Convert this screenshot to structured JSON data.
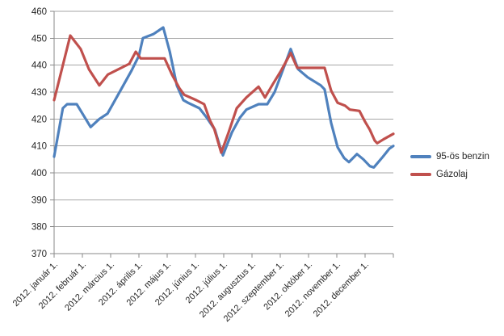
{
  "chart_data": {
    "type": "line",
    "title": "",
    "x_unit": "months_from_2012_01_01",
    "x_tick_labels": [
      "2012. január 1.",
      "2012. február 1.",
      "2012. március 1.",
      "2012. április 1.",
      "2012. május 1.",
      "2012. június 1.",
      "2012. július 1.",
      "2012. augusztus 1.",
      "2012. szeptember 1.",
      "2012. október 1.",
      "2012. november 1.",
      "2012. december 1."
    ],
    "y_axis": {
      "min": 370,
      "max": 460,
      "step": 10
    },
    "y_ticks": [
      370,
      380,
      390,
      400,
      410,
      420,
      430,
      440,
      450,
      460
    ],
    "grid": true,
    "legend_position": "right",
    "colors": {
      "gridline": "#A6A6A6",
      "axis": "#898989",
      "label_text": "#262626"
    },
    "series": [
      {
        "name": "95-ös benzin",
        "color": "#4F81BD",
        "points": [
          [
            0,
            406
          ],
          [
            0.31,
            424
          ],
          [
            0.46,
            425.5
          ],
          [
            0.8,
            425.5
          ],
          [
            1.03,
            421.5
          ],
          [
            1.29,
            417
          ],
          [
            1.6,
            420
          ],
          [
            1.89,
            422
          ],
          [
            2.37,
            431
          ],
          [
            2.74,
            438
          ],
          [
            3,
            443.5
          ],
          [
            3.14,
            450
          ],
          [
            3.51,
            451.5
          ],
          [
            3.86,
            454
          ],
          [
            4.09,
            445
          ],
          [
            4.34,
            432.5
          ],
          [
            4.57,
            427
          ],
          [
            4.74,
            426
          ],
          [
            5.14,
            424
          ],
          [
            5.4,
            420.5
          ],
          [
            5.69,
            416
          ],
          [
            5.86,
            410
          ],
          [
            5.97,
            406.5
          ],
          [
            6.29,
            415
          ],
          [
            6.57,
            420.5
          ],
          [
            6.8,
            423.5
          ],
          [
            7.23,
            425.5
          ],
          [
            7.54,
            425.5
          ],
          [
            7.8,
            430
          ],
          [
            8.03,
            436.5
          ],
          [
            8.37,
            446
          ],
          [
            8.63,
            438.5
          ],
          [
            8.97,
            435.5
          ],
          [
            9.43,
            432.5
          ],
          [
            9.57,
            431
          ],
          [
            9.8,
            418.5
          ],
          [
            10.03,
            409.5
          ],
          [
            10.26,
            405.5
          ],
          [
            10.43,
            404
          ],
          [
            10.71,
            407
          ],
          [
            10.94,
            405
          ],
          [
            11.17,
            402.5
          ],
          [
            11.31,
            402
          ],
          [
            11.63,
            406
          ],
          [
            11.86,
            409
          ],
          [
            12,
            410
          ]
        ]
      },
      {
        "name": "Gázolaj",
        "color": "#C0504D",
        "points": [
          [
            0,
            427
          ],
          [
            0.57,
            451
          ],
          [
            0.94,
            446
          ],
          [
            1.23,
            438.5
          ],
          [
            1.6,
            432.5
          ],
          [
            1.9,
            436.5
          ],
          [
            2.66,
            440.5
          ],
          [
            2.89,
            445
          ],
          [
            3.06,
            442.5
          ],
          [
            3.91,
            442.5
          ],
          [
            4.17,
            436.5
          ],
          [
            4.43,
            431.5
          ],
          [
            4.6,
            429
          ],
          [
            5.03,
            427
          ],
          [
            5.31,
            425.5
          ],
          [
            5.51,
            419.5
          ],
          [
            5.66,
            416.5
          ],
          [
            5.91,
            407.5
          ],
          [
            6.17,
            415
          ],
          [
            6.46,
            424
          ],
          [
            6.8,
            428
          ],
          [
            7.23,
            432
          ],
          [
            7.46,
            428
          ],
          [
            7.74,
            433
          ],
          [
            8.03,
            438
          ],
          [
            8.37,
            444.5
          ],
          [
            8.6,
            439
          ],
          [
            9.57,
            439
          ],
          [
            9.8,
            430.5
          ],
          [
            10.03,
            426
          ],
          [
            10.29,
            425
          ],
          [
            10.46,
            423.5
          ],
          [
            10.8,
            423
          ],
          [
            11,
            419
          ],
          [
            11.17,
            416
          ],
          [
            11.34,
            412
          ],
          [
            11.43,
            411
          ],
          [
            11.66,
            412.5
          ],
          [
            12,
            414.5
          ]
        ]
      }
    ]
  }
}
